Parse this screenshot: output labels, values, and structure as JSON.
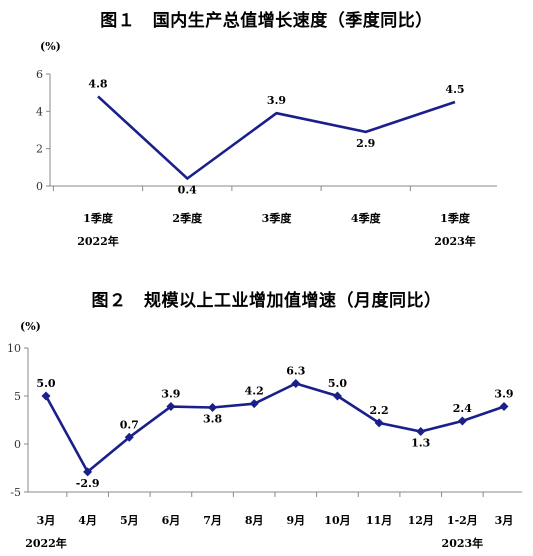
{
  "figure1": {
    "title": "图１　国内生产总值增长速度（季度同比）",
    "unit": "(%)"
  },
  "figure2": {
    "title": "图２　规模以上工业增加值增速（月度同比）",
    "unit": "(%)"
  },
  "colors": {
    "line": "#1b1f8a",
    "axis": "#8a8a8a",
    "text": "#000000"
  },
  "chart_data": [
    {
      "type": "line",
      "title": "图１　国内生产总值增长速度（季度同比）",
      "ylabel": "(%)",
      "categories": [
        "1季度",
        "2季度",
        "3季度",
        "4季度",
        "1季度"
      ],
      "year_labels": [
        {
          "category_index": 0,
          "text": "2022年"
        },
        {
          "category_index": 4,
          "text": "2023年"
        }
      ],
      "values": [
        4.8,
        0.4,
        3.9,
        2.9,
        4.5
      ],
      "value_labels": [
        "4.8",
        "0.4",
        "3.9",
        "2.9",
        "4.5"
      ],
      "ylim": [
        0,
        6
      ],
      "yticks": [
        0,
        2,
        4,
        6
      ],
      "grid": false,
      "marker": "none"
    },
    {
      "type": "line",
      "title": "图２　规模以上工业增加值增速（月度同比）",
      "ylabel": "(%)",
      "categories": [
        "3月",
        "4月",
        "5月",
        "6月",
        "7月",
        "8月",
        "9月",
        "10月",
        "11月",
        "12月",
        "1-2月",
        "3月"
      ],
      "year_labels": [
        {
          "category_index": 0,
          "text": "2022年"
        },
        {
          "category_index": 10,
          "text": "2023年"
        }
      ],
      "values": [
        5.0,
        -2.9,
        0.7,
        3.9,
        3.8,
        4.2,
        6.3,
        5.0,
        2.2,
        1.3,
        2.4,
        3.9
      ],
      "value_labels": [
        "5.0",
        "-2.9",
        "0.7",
        "3.9",
        "3.8",
        "4.2",
        "6.3",
        "5.0",
        "2.2",
        "1.3",
        "2.4",
        "3.9"
      ],
      "ylim": [
        -5,
        10
      ],
      "yticks": [
        -5,
        0,
        5,
        10
      ],
      "grid": false,
      "marker": "diamond"
    }
  ]
}
